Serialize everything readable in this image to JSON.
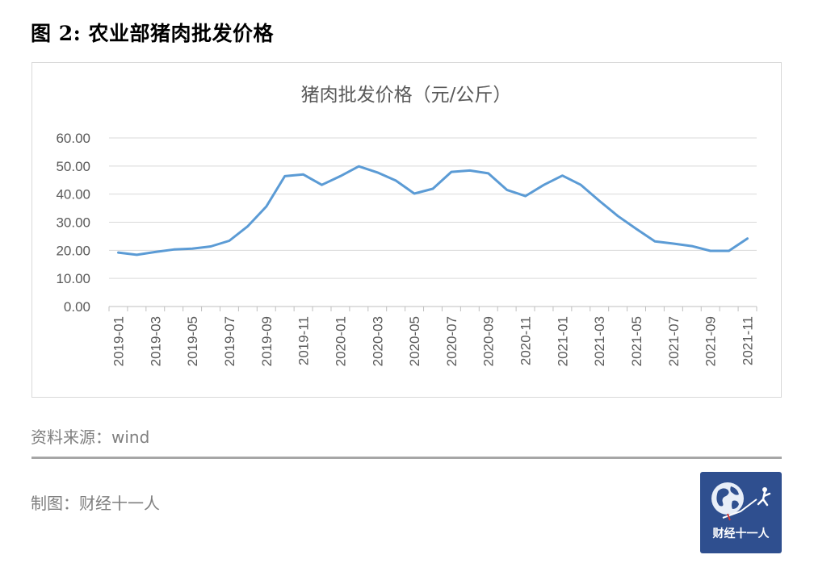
{
  "figure_title": "图 2:  农业部猪肉批发价格",
  "source": "资料来源：wind",
  "maker": "制图：财经十一人",
  "logo_text": "财经十一人",
  "colors": {
    "line": "#5b9bd5",
    "grid": "#d9d9d9",
    "logo_bg": "#2f4f8f"
  },
  "chart_data": {
    "type": "line",
    "title": "猪肉批发价格（元/公斤）",
    "ylim": [
      0,
      60
    ],
    "yticks": [
      "0.00",
      "10.00",
      "20.00",
      "30.00",
      "40.00",
      "50.00",
      "60.00"
    ],
    "grid": true,
    "xtick_labels": [
      "2019-01",
      "2019-03",
      "2019-05",
      "2019-07",
      "2019-09",
      "2019-11",
      "2020-01",
      "2020-03",
      "2020-05",
      "2020-07",
      "2020-09",
      "2020-11",
      "2021-01",
      "2021-03",
      "2021-05",
      "2021-07",
      "2021-09",
      "2021-11"
    ],
    "x": [
      "2019-01",
      "2019-02",
      "2019-03",
      "2019-04",
      "2019-05",
      "2019-06",
      "2019-07",
      "2019-08",
      "2019-09",
      "2019-10",
      "2019-11",
      "2019-12",
      "2020-01",
      "2020-02",
      "2020-03",
      "2020-04",
      "2020-05",
      "2020-06",
      "2020-07",
      "2020-08",
      "2020-09",
      "2020-10",
      "2020-11",
      "2020-12",
      "2021-01",
      "2021-02",
      "2021-03",
      "2021-04",
      "2021-05",
      "2021-06",
      "2021-07",
      "2021-08",
      "2021-09",
      "2021-10",
      "2021-11"
    ],
    "series": [
      {
        "values": [
          19.2,
          18.4,
          19.4,
          20.3,
          20.6,
          21.4,
          23.4,
          28.6,
          35.6,
          46.4,
          47.0,
          43.3,
          46.4,
          49.9,
          47.7,
          44.8,
          40.2,
          41.9,
          47.9,
          48.4,
          47.4,
          41.5,
          39.3,
          43.3,
          46.6,
          43.3,
          37.6,
          32.2,
          27.6,
          23.2,
          22.4,
          21.5,
          19.8,
          19.8,
          24.2
        ]
      }
    ]
  }
}
